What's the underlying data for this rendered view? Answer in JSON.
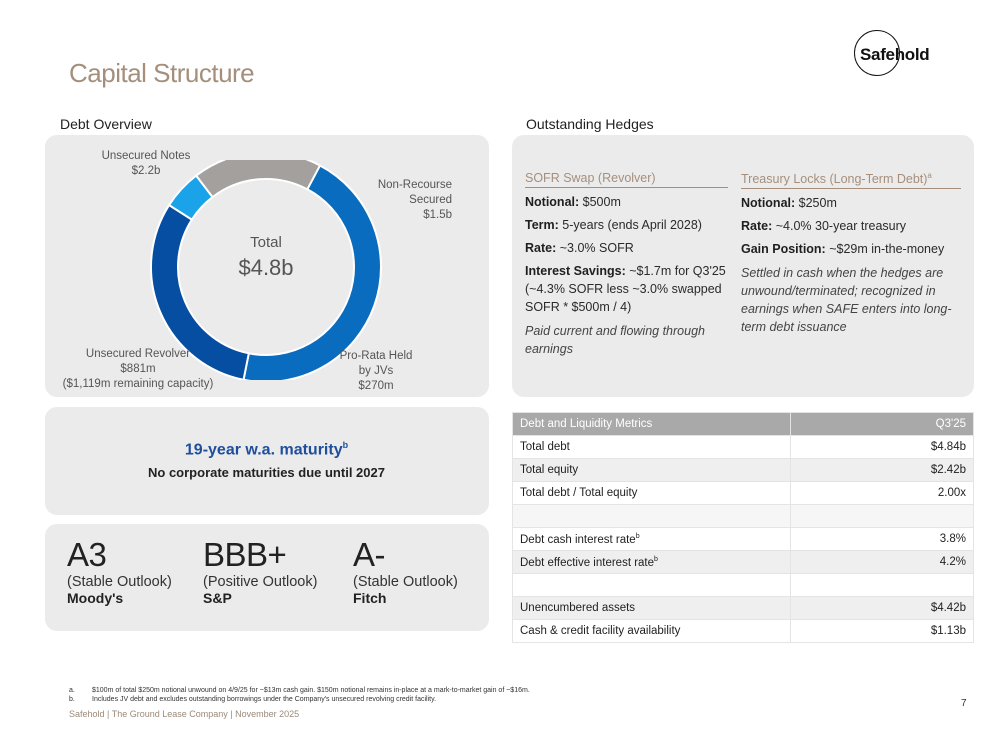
{
  "page": {
    "title": "Capital Structure",
    "logo_text": "Safehold",
    "page_number": "7",
    "footer": "Safehold | The Ground Lease Company | November 2025"
  },
  "debt_overview": {
    "heading": "Debt Overview",
    "total_caption": "Total",
    "total_value": "$4.8b",
    "segments": [
      {
        "name": "Unsecured Notes",
        "value_label": "$2.2b",
        "value": 2.2,
        "color": "#0a6cbf"
      },
      {
        "name": "Non-Recourse Secured",
        "value_label": "$1.5b",
        "value": 1.5,
        "color": "#064ea2"
      },
      {
        "name": "Pro-Rata Held by JVs",
        "value_label": "$270m",
        "value": 0.27,
        "color": "#1aa3e8"
      },
      {
        "name": "Unsecured Revolver",
        "value_label": "$881m",
        "value": 0.881,
        "color": "#a3a09d",
        "note": "($1,119m remaining capacity)"
      }
    ],
    "labels": {
      "notes_line1": "Unsecured Notes",
      "notes_line2": "$2.2b",
      "nonrec_line1": "Non-Recourse",
      "nonrec_line2": "Secured",
      "nonrec_line3": "$1.5b",
      "jv_line1": "Pro-Rata Held",
      "jv_line2": "by JVs",
      "jv_line3": "$270m",
      "rev_line1": "Unsecured Revolver",
      "rev_line2": "$881m",
      "rev_line3": "($1,119m remaining capacity)"
    }
  },
  "maturity": {
    "title": "19-year w.a. maturity",
    "title_sup": "b",
    "subtitle": "No corporate maturities due until 2027"
  },
  "ratings": [
    {
      "grade": "A3",
      "outlook": "(Stable Outlook)",
      "agency": "Moody's"
    },
    {
      "grade": "BBB+",
      "outlook": "(Positive Outlook)",
      "agency": "S&P"
    },
    {
      "grade": "A-",
      "outlook": "(Stable Outlook)",
      "agency": "Fitch"
    }
  ],
  "hedges": {
    "heading": "Outstanding Hedges",
    "sofr": {
      "title": "SOFR Swap (Revolver)",
      "notional_label": "Notional:",
      "notional_value": "$500m",
      "term_label": "Term:",
      "term_value": "5-years (ends April 2028)",
      "rate_label": "Rate:",
      "rate_value": "~3.0% SOFR",
      "savings_label": "Interest Savings:",
      "savings_value": "~$1.7m for Q3'25 (~4.3% SOFR less ~3.0% swapped SOFR * $500m / 4)",
      "note": "Paid current and flowing through earnings"
    },
    "treasury": {
      "title": "Treasury Locks (Long-Term Debt)",
      "title_sup": "a",
      "notional_label": "Notional:",
      "notional_value": "$250m",
      "rate_label": "Rate:",
      "rate_value": "~4.0% 30-year treasury",
      "gain_label": "Gain Position:",
      "gain_value": "~$29m in-the-money",
      "note": "Settled in cash when the hedges are unwound/terminated; recognized in earnings when SAFE enters into long-term debt issuance"
    }
  },
  "metrics": {
    "header_label": "Debt and Liquidity Metrics",
    "header_period": "Q3'25",
    "rows": [
      {
        "label": "Total debt",
        "value": "$4.84b"
      },
      {
        "label": "Total equity",
        "value": "$2.42b"
      },
      {
        "label": "Total debt / Total equity",
        "value": "2.00x"
      },
      {
        "label": "",
        "value": ""
      },
      {
        "label": "Debt cash interest rate",
        "sup": "b",
        "value": "3.8%"
      },
      {
        "label": "Debt effective interest rate",
        "sup": "b",
        "value": "4.2%"
      },
      {
        "label": "",
        "value": ""
      },
      {
        "label": "Unencumbered assets",
        "value": "$4.42b"
      },
      {
        "label": "Cash & credit facility availability",
        "value": "$1.13b"
      }
    ]
  },
  "footnotes": {
    "a_marker": "a.",
    "a_text": "$100m of total $250m notional unwound on 4/9/25 for ~$13m cash gain. $150m notional remains in-place at a mark-to-market gain of ~$16m.",
    "b_marker": "b.",
    "b_text": "Includes JV debt and excludes outstanding borrowings under the Company's unsecured revolving credit facility."
  }
}
